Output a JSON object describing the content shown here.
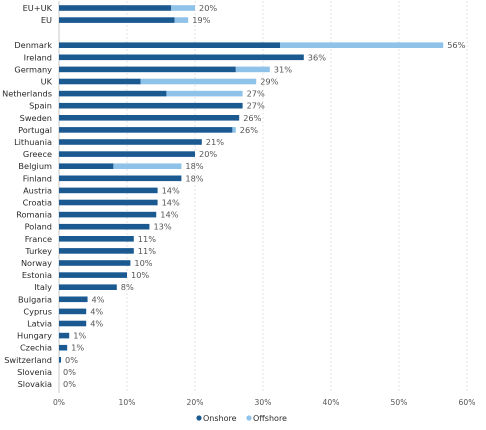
{
  "chart_data": {
    "type": "bar",
    "orientation": "horizontal",
    "stacked": true,
    "categories": [
      "EU+UK",
      "EU",
      "Denmark",
      "Ireland",
      "Germany",
      "UK",
      "Netherlands",
      "Spain",
      "Sweden",
      "Portugal",
      "Lithuania",
      "Greece",
      "Belgium",
      "Finland",
      "Austria",
      "Croatia",
      "Romania",
      "Poland",
      "France",
      "Turkey",
      "Norway",
      "Estonia",
      "Italy",
      "Bulgaria",
      "Cyprus",
      "Latvia",
      "Hungary",
      "Czechia",
      "Switzerland",
      "Slovenia",
      "Slovakia"
    ],
    "gap_after_index": 1,
    "series": [
      {
        "name": "Onshore",
        "color": "#1b5a91",
        "values": [
          16.5,
          17,
          32.5,
          36,
          26,
          12,
          15.8,
          27,
          26.5,
          25.5,
          21,
          20,
          8,
          18,
          14.5,
          14.5,
          14.3,
          13.3,
          11,
          11,
          10.5,
          10,
          8.5,
          4.2,
          4,
          4,
          1.5,
          1.2,
          0.3,
          0,
          0
        ]
      },
      {
        "name": "Offshore",
        "color": "#8fc2e8",
        "values": [
          3.5,
          2,
          24,
          0,
          5,
          17,
          11.2,
          0,
          0,
          0.5,
          0,
          0,
          10,
          0,
          0,
          0,
          0,
          0,
          0,
          0,
          0,
          0,
          0,
          0,
          0,
          0,
          0,
          0,
          0,
          0,
          0
        ]
      }
    ],
    "data_labels": [
      "20%",
      "19%",
      "56%",
      "36%",
      "31%",
      "29%",
      "27%",
      "27%",
      "26%",
      "26%",
      "21%",
      "20%",
      "18%",
      "18%",
      "14%",
      "14%",
      "14%",
      "13%",
      "11%",
      "11%",
      "10%",
      "10%",
      "8%",
      "4%",
      "4%",
      "4%",
      "1%",
      "1%",
      "0%",
      "0%",
      "0%"
    ],
    "x_ticks": [
      "0%",
      "10%",
      "20%",
      "30%",
      "40%",
      "50%",
      "60%"
    ],
    "xlim": [
      0,
      60
    ],
    "grid": "vertical-dashed",
    "legend": {
      "placement": "bottom",
      "entries": [
        "Onshore",
        "Offshore"
      ]
    }
  }
}
